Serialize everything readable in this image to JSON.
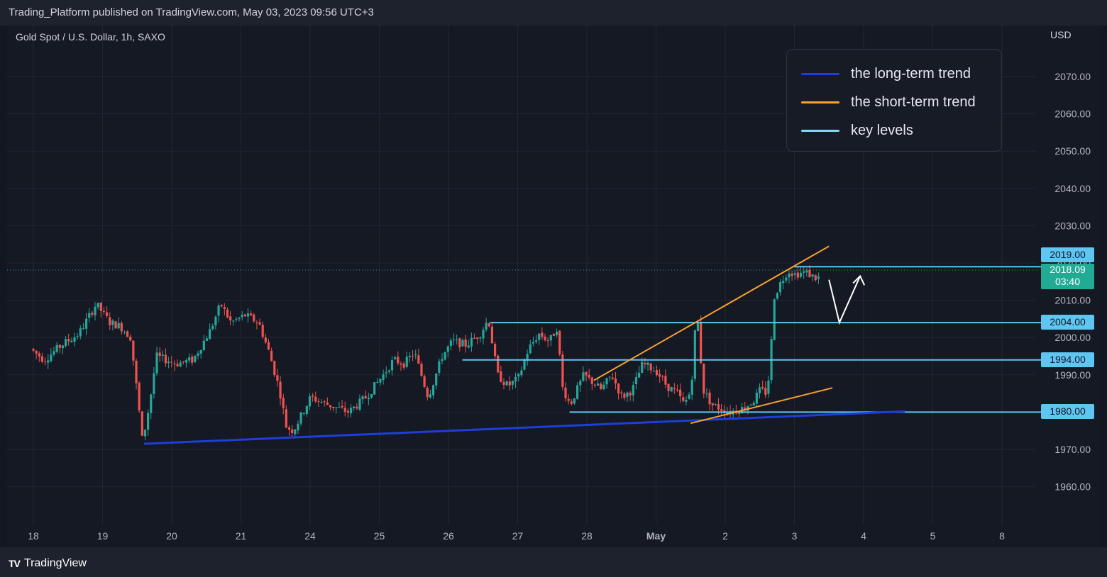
{
  "header": {
    "published": "Trading_Platform published on TradingView.com, May 03, 2023 09:56 UTC+3"
  },
  "symbol": "Gold Spot / U.S. Dollar, 1h, SAXO",
  "currency": "USD",
  "legend": [
    {
      "label": "the long-term trend",
      "color": "#1f3ddb"
    },
    {
      "label": "the short-term trend",
      "color": "#f7a12f"
    },
    {
      "label": "key levels",
      "color": "#7fd8f6"
    }
  ],
  "price_tags": [
    {
      "label": "2019.00",
      "value": 2019.0
    },
    {
      "label": "2004.00",
      "value": 2004.0
    },
    {
      "label": "1994.00",
      "value": 1994.0
    },
    {
      "label": "1980.00",
      "value": 1980.0
    }
  ],
  "last_price": {
    "price": "2018.09",
    "countdown": "03:40"
  },
  "brand": {
    "mark": "TV",
    "name": "TradingView"
  },
  "colors": {
    "up": "#26a69a",
    "down": "#ef5350",
    "long_trend": "#1f3ddb",
    "short_trend": "#f7a12f",
    "key_level": "#5fc6f2",
    "arrow": "#ffffff"
  },
  "chart_data": {
    "type": "candlestick",
    "interval": "1h",
    "x_tick_labels": [
      "18",
      "19",
      "20",
      "21",
      "24",
      "25",
      "26",
      "27",
      "28",
      "May",
      "2",
      "3",
      "4",
      "5",
      "8"
    ],
    "y_tick_labels": [
      "2070.00",
      "2060.00",
      "2050.00",
      "2040.00",
      "2030.00",
      "2020.00",
      "2010.00",
      "2000.00",
      "1990.00",
      "1980.00",
      "1970.00",
      "1960.00"
    ],
    "y_ticks": [
      2070,
      2060,
      2050,
      2040,
      2030,
      2020,
      2010,
      2000,
      1990,
      1980,
      1970,
      1960
    ],
    "ylim": [
      1953,
      2083
    ],
    "key_levels": [
      {
        "value": 2019.0,
        "from": 11.0,
        "to": 15.2
      },
      {
        "value": 2004.0,
        "from": 6.6,
        "to": 15.2
      },
      {
        "value": 1994.0,
        "from": 6.2,
        "to": 15.2
      },
      {
        "value": 1980.0,
        "from": 7.75,
        "to": 15.2
      }
    ],
    "trend_lines": [
      {
        "kind": "long-term",
        "points": [
          [
            1.6,
            1971.5
          ],
          [
            12.6,
            1980.2
          ]
        ]
      },
      {
        "kind": "short-term",
        "points": [
          [
            8.1,
            1988.5
          ],
          [
            11.5,
            2024.5
          ]
        ]
      },
      {
        "kind": "short-term",
        "points": [
          [
            9.5,
            1977.0
          ],
          [
            11.55,
            1986.5
          ]
        ]
      }
    ],
    "projection_arrow": [
      [
        11.5,
        2015.5
      ],
      [
        11.65,
        2004.0
      ],
      [
        11.95,
        2016.5
      ]
    ],
    "price_path": [
      [
        0.0,
        1997.0
      ],
      [
        0.2,
        1994.0
      ],
      [
        0.45,
        1998.0
      ],
      [
        0.7,
        2001.0
      ],
      [
        0.95,
        2009.0
      ],
      [
        1.15,
        2004.0
      ],
      [
        1.3,
        2003.0
      ],
      [
        1.45,
        2000.0
      ],
      [
        1.55,
        1984.0
      ],
      [
        1.62,
        1972.0
      ],
      [
        1.72,
        1982.0
      ],
      [
        1.82,
        1995.0
      ],
      [
        2.1,
        1993.0
      ],
      [
        2.35,
        1994.0
      ],
      [
        2.6,
        2002.0
      ],
      [
        2.75,
        2009.0
      ],
      [
        2.9,
        2004.0
      ],
      [
        3.1,
        2006.0
      ],
      [
        3.3,
        2004.0
      ],
      [
        3.45,
        1996.0
      ],
      [
        3.6,
        1986.0
      ],
      [
        3.7,
        1976.0
      ],
      [
        3.8,
        1975.0
      ],
      [
        4.05,
        1984.0
      ],
      [
        4.3,
        1982.0
      ],
      [
        4.6,
        1980.0
      ],
      [
        4.85,
        1984.0
      ],
      [
        5.1,
        1990.0
      ],
      [
        5.25,
        1994.0
      ],
      [
        5.4,
        1993.0
      ],
      [
        5.55,
        1996.0
      ],
      [
        5.75,
        1984.0
      ],
      [
        5.95,
        1995.0
      ],
      [
        6.1,
        1999.0
      ],
      [
        6.3,
        1998.0
      ],
      [
        6.5,
        2001.0
      ],
      [
        6.62,
        2005.0
      ],
      [
        6.75,
        1990.0
      ],
      [
        6.9,
        1987.0
      ],
      [
        7.05,
        1989.0
      ],
      [
        7.2,
        1997.0
      ],
      [
        7.35,
        2001.0
      ],
      [
        7.5,
        1999.0
      ],
      [
        7.62,
        2003.0
      ],
      [
        7.68,
        1987.0
      ],
      [
        7.8,
        1982.0
      ],
      [
        8.0,
        1990.0
      ],
      [
        8.25,
        1986.0
      ],
      [
        8.4,
        1990.0
      ],
      [
        8.55,
        1984.0
      ],
      [
        8.7,
        1986.0
      ],
      [
        8.85,
        1993.0
      ],
      [
        9.05,
        1991.0
      ],
      [
        9.2,
        1987.0
      ],
      [
        9.35,
        1985.0
      ],
      [
        9.45,
        1982.0
      ],
      [
        9.55,
        1986.0
      ],
      [
        9.6,
        2001.0
      ],
      [
        9.65,
        2004.0
      ],
      [
        9.72,
        1986.0
      ],
      [
        9.85,
        1982.0
      ],
      [
        10.1,
        1980.0
      ],
      [
        10.3,
        1981.0
      ],
      [
        10.45,
        1983.0
      ],
      [
        10.55,
        1986.0
      ],
      [
        10.65,
        1985.0
      ],
      [
        10.7,
        1996.0
      ],
      [
        10.75,
        2011.0
      ],
      [
        10.85,
        2015.0
      ],
      [
        10.95,
        2018.0
      ],
      [
        11.05,
        2017.0
      ],
      [
        11.2,
        2017.5
      ],
      [
        11.35,
        2016.0
      ]
    ]
  }
}
